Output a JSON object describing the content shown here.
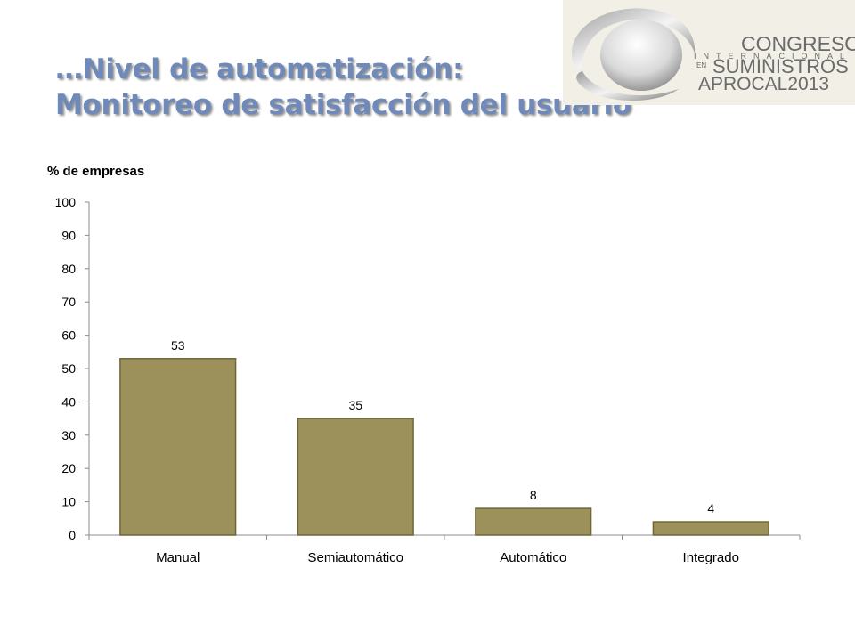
{
  "slide": {
    "title_line1": "…Nivel de automatización:",
    "title_line2": "Monitoreo de satisfacción del usuario"
  },
  "logo": {
    "line1": "CONGRESO",
    "line2": "INTERNACIONAL",
    "line3": "EN",
    "line4": "SUMINISTROS",
    "line5": "APROCAL2013",
    "icon": "sphere-emblem-icon"
  },
  "chart_data": {
    "type": "bar",
    "ylabel": "% de empresas",
    "categories": [
      "Manual",
      "Semiautomático",
      "Automático",
      "Integrado"
    ],
    "values": [
      53,
      35,
      8,
      4
    ],
    "data_labels": [
      "53",
      "35",
      "8",
      "4"
    ],
    "ylim": [
      0,
      100
    ],
    "yticks": [
      0,
      10,
      20,
      30,
      40,
      50,
      60,
      70,
      80,
      90,
      100
    ],
    "bar_color": "#9c915a",
    "bar_edge_color": "#6e6638",
    "grid": false,
    "legend": "none"
  }
}
